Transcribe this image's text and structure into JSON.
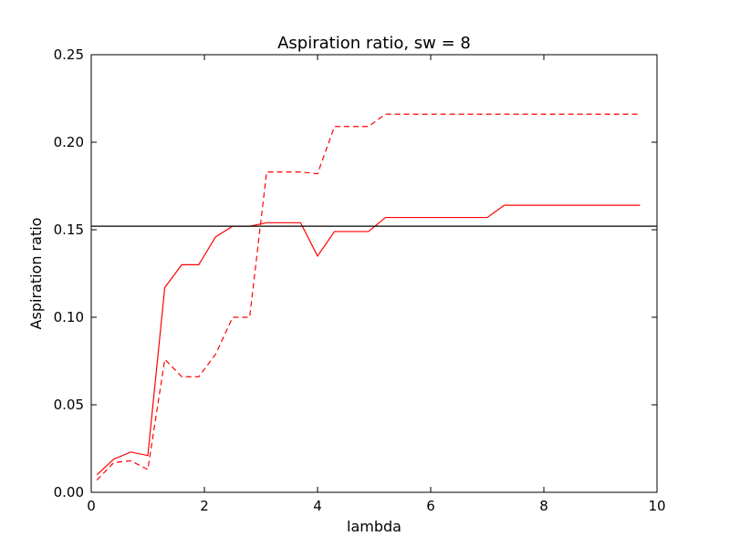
{
  "chart_data": {
    "type": "line",
    "title": "Aspiration ratio, sw = 8",
    "xlabel": "lambda",
    "ylabel": "Aspiration ratio",
    "xlim": [
      0,
      10
    ],
    "ylim": [
      0,
      0.25
    ],
    "x_ticks": [
      0,
      2,
      4,
      6,
      8,
      10
    ],
    "x_tick_labels": [
      "0",
      "2",
      "4",
      "6",
      "8",
      "10"
    ],
    "y_ticks": [
      0.0,
      0.05,
      0.1,
      0.15,
      0.2,
      0.25
    ],
    "y_tick_labels": [
      "0.00",
      "0.05",
      "0.10",
      "0.15",
      "0.20",
      "0.25"
    ],
    "grid": false,
    "legend": "none",
    "series": [
      {
        "color": "#ff0000",
        "style": "solid",
        "x": [
          0.1,
          0.4,
          0.7,
          1.0,
          1.3,
          1.6,
          1.9,
          2.2,
          2.5,
          2.8,
          3.1,
          3.4,
          3.7,
          4.0,
          4.3,
          4.6,
          4.9,
          5.2,
          5.5,
          5.8,
          6.1,
          6.4,
          6.7,
          7.0,
          7.3,
          7.6,
          7.9,
          8.2,
          8.5,
          8.8,
          9.1,
          9.4,
          9.7
        ],
        "values": [
          0.01,
          0.019,
          0.023,
          0.021,
          0.117,
          0.13,
          0.13,
          0.146,
          0.152,
          0.152,
          0.154,
          0.154,
          0.154,
          0.135,
          0.149,
          0.149,
          0.149,
          0.157,
          0.157,
          0.157,
          0.157,
          0.157,
          0.157,
          0.157,
          0.164,
          0.164,
          0.164,
          0.164,
          0.164,
          0.164,
          0.164,
          0.164,
          0.164
        ]
      },
      {
        "color": "#ff0000",
        "style": "dashed",
        "x": [
          0.1,
          0.4,
          0.7,
          1.0,
          1.3,
          1.6,
          1.9,
          2.2,
          2.5,
          2.8,
          3.1,
          3.4,
          3.7,
          4.0,
          4.3,
          4.6,
          4.9,
          5.2,
          5.5,
          5.8,
          6.1,
          6.4,
          6.7,
          7.0,
          7.3,
          7.6,
          7.9,
          8.2,
          8.5,
          8.8,
          9.1,
          9.4,
          9.7
        ],
        "values": [
          0.007,
          0.017,
          0.018,
          0.013,
          0.076,
          0.066,
          0.066,
          0.079,
          0.1,
          0.1,
          0.183,
          0.183,
          0.183,
          0.182,
          0.209,
          0.209,
          0.209,
          0.216,
          0.216,
          0.216,
          0.216,
          0.216,
          0.216,
          0.216,
          0.216,
          0.216,
          0.216,
          0.216,
          0.216,
          0.216,
          0.216,
          0.216,
          0.216
        ]
      }
    ],
    "reference_line": {
      "y": 0.152,
      "color": "#000000"
    },
    "baseline_line": {
      "y": 0.0,
      "color": "#000000",
      "style": "dashed"
    }
  }
}
